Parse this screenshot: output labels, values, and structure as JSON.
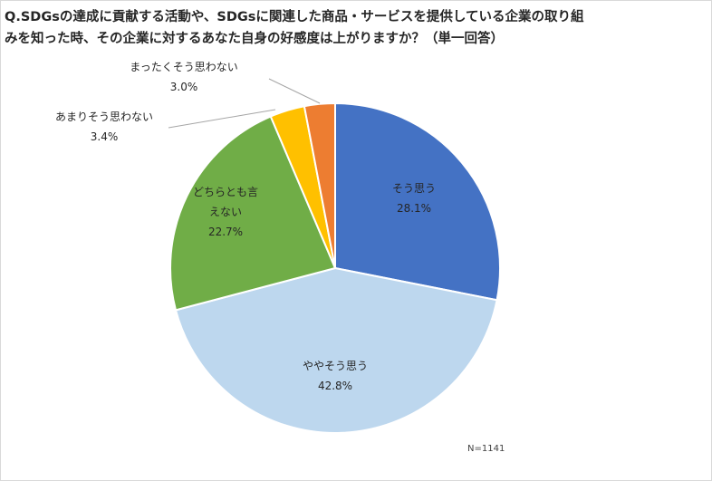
{
  "title_lines": [
    "Q.SDGsの達成に貢献する活動や、SDGsに関連した商品・サービスを提供している企業の取り組",
    "みを知った時、その企業に対するあなた自身の好感度は上がりますか？（単一回答）"
  ],
  "note": "N=1141",
  "chart_data": {
    "type": "pie",
    "title": "Q.SDGsの達成に貢献する活動や、SDGsに関連した商品・サービスを提供している企業の取り組みを知った時、その企業に対するあなた自身の好感度は上がりますか？（単一回答）",
    "start": "12 o'clock, clockwise",
    "slices": [
      {
        "label_lines": [
          "そう思う"
        ],
        "value": 28.1,
        "value_label": "28.1%",
        "color": "#4472C4",
        "label_color": "#ffffff",
        "label_place": "inside"
      },
      {
        "label_lines": [
          "ややそう思う"
        ],
        "value": 42.8,
        "value_label": "42.8%",
        "color": "#BDD7EE",
        "label_color": "#262626",
        "label_place": "inside"
      },
      {
        "label_lines": [
          "どちらとも言",
          "えない"
        ],
        "value": 22.7,
        "value_label": "22.7%",
        "color": "#70AD47",
        "label_color": "#262626",
        "label_place": "inside"
      },
      {
        "label_lines": [
          "あまりそう思わない"
        ],
        "value": 3.4,
        "value_label": "3.4%",
        "color": "#FFC000",
        "label_color": "#262626",
        "label_place": "outside-left"
      },
      {
        "label_lines": [
          "まったくそう思わない"
        ],
        "value": 3.0,
        "value_label": "3.0%",
        "color": "#ED7D31",
        "label_color": "#262626",
        "label_place": "outside-top"
      }
    ],
    "note": "N=1141"
  }
}
